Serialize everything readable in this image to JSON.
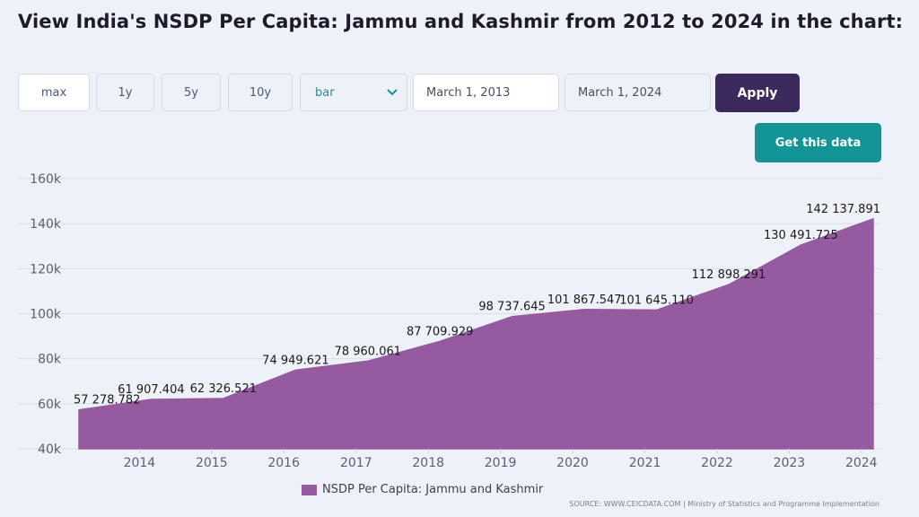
{
  "header": {
    "title": "View India's NSDP Per Capita: Jammu and Kashmir from 2012 to 2024 in the chart:"
  },
  "controls": {
    "range_buttons": [
      "max",
      "1y",
      "5y",
      "10y"
    ],
    "chart_type_selected": "bar",
    "date_from": "March 1, 2013",
    "date_to": "March 1, 2024",
    "apply_label": "Apply",
    "get_data_label": "Get this data"
  },
  "colors": {
    "area_fill": "#955a9f",
    "apply_bg": "#3d2a5d",
    "get_data_bg": "#139598"
  },
  "footer": {
    "legend_label": "NSDP Per Capita: Jammu and Kashmir",
    "source": "SOURCE: WWW.CEICDATA.COM | Ministry of Statistics and Programme Implementation"
  },
  "chart_data": {
    "type": "area",
    "title": "",
    "xlabel": "",
    "ylabel": "",
    "x": [
      "2013-03-01",
      "2014-03-01",
      "2015-03-01",
      "2016-03-01",
      "2017-03-01",
      "2018-03-01",
      "2019-03-01",
      "2020-03-01",
      "2021-03-01",
      "2022-03-01",
      "2023-03-01",
      "2024-03-01"
    ],
    "x_ticks": [
      "2014",
      "2015",
      "2016",
      "2017",
      "2018",
      "2019",
      "2020",
      "2021",
      "2022",
      "2023",
      "2024"
    ],
    "y_ticks": [
      "160k",
      "140k",
      "120k",
      "100k",
      "80k",
      "60k",
      "40k"
    ],
    "ylim": [
      40000,
      160000
    ],
    "series": [
      {
        "name": "NSDP Per Capita: Jammu and Kashmir",
        "values": [
          57278.782,
          61907.404,
          62326.521,
          74949.621,
          78960.061,
          87709.929,
          98737.645,
          101867.547,
          101645.11,
          112898.291,
          130491.725,
          142137.891
        ],
        "labels": [
          "57 278.782",
          "61 907.404",
          "62 326.521",
          "74 949.621",
          "78 960.061",
          "87 709.929",
          "98 737.645",
          "101 867.547",
          "101 645.110",
          "112 898.291",
          "130 491.725",
          "142 137.891"
        ]
      }
    ],
    "grid": true,
    "legend_position": "bottom"
  }
}
